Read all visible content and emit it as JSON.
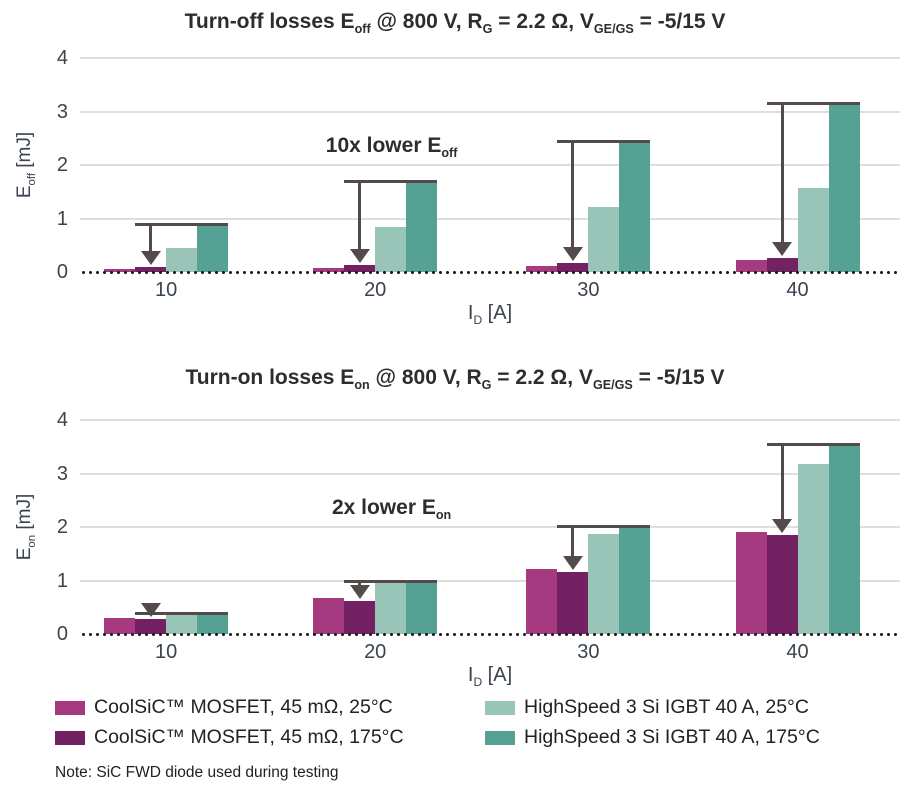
{
  "colors": {
    "series": [
      "#a53a81",
      "#732162",
      "#99c5b9",
      "#55a193"
    ],
    "arrow": "#534a4a",
    "gridline": "#e0dddd",
    "baseline_dots": "#1c1c1c",
    "tick_text": "#3a434e",
    "title_text": "#2d2d2d"
  },
  "legend": {
    "items": [
      {
        "label": "CoolSiC™ MOSFET, 45 mΩ, 25°C",
        "color": "#a53a81"
      },
      {
        "label": "CoolSiC™ MOSFET, 45 mΩ, 175°C",
        "color": "#732162"
      },
      {
        "label": "HighSpeed 3 Si IGBT 40 A, 25°C",
        "color": "#99c5b9"
      },
      {
        "label": "HighSpeed 3 Si IGBT 40 A, 175°C",
        "color": "#55a193"
      }
    ]
  },
  "note": "Note: SiC FWD diode used during testing",
  "chart_data": [
    {
      "type": "bar",
      "title": "Turn-off losses E_{off} @ 800 V, R_{G} = 2.2 Ω, V_{GE/GS} = -5/15 V",
      "xlabel": "I_{D} [A]",
      "ylabel": "E_{off} [mJ]",
      "annotation": "10x lower E_{off}",
      "categories": [
        "10",
        "20",
        "30",
        "40"
      ],
      "ylim": [
        0,
        4
      ],
      "yticks": [
        0,
        1,
        2,
        3,
        4
      ],
      "grid": true,
      "legend_position": "shared-bottom",
      "series": [
        {
          "name": "CoolSiC™ MOSFET, 45 mΩ, 25°C",
          "values": [
            0.06,
            0.08,
            0.12,
            0.22
          ]
        },
        {
          "name": "CoolSiC™ MOSFET, 45 mΩ, 175°C",
          "values": [
            0.1,
            0.13,
            0.16,
            0.26
          ]
        },
        {
          "name": "HighSpeed 3 Si IGBT 40 A, 25°C",
          "values": [
            0.45,
            0.85,
            1.22,
            1.57
          ]
        },
        {
          "name": "HighSpeed 3 Si IGBT 40 A, 175°C",
          "values": [
            0.89,
            1.7,
            2.45,
            3.15
          ]
        }
      ],
      "arrow": {
        "from_series": 3,
        "to_series": 1
      }
    },
    {
      "type": "bar",
      "title": "Turn-on losses E_{on} @ 800 V, R_{G} = 2.2 Ω, V_{GE/GS} = -5/15 V",
      "xlabel": "I_{D} [A]",
      "ylabel": "E_{on} [mJ]",
      "annotation": "2x lower E_{on}",
      "categories": [
        "10",
        "20",
        "30",
        "40"
      ],
      "ylim": [
        0,
        4
      ],
      "yticks": [
        0,
        1,
        2,
        3,
        4
      ],
      "grid": true,
      "legend_position": "shared-bottom",
      "series": [
        {
          "name": "CoolSiC™ MOSFET, 45 mΩ, 25°C",
          "values": [
            0.3,
            0.67,
            1.21,
            1.9
          ]
        },
        {
          "name": "CoolSiC™ MOSFET, 45 mΩ, 175°C",
          "values": [
            0.28,
            0.62,
            1.16,
            1.85
          ]
        },
        {
          "name": "HighSpeed 3 Si IGBT 40 A, 25°C",
          "values": [
            0.37,
            0.97,
            1.87,
            3.17
          ]
        },
        {
          "name": "HighSpeed 3 Si IGBT 40 A, 175°C",
          "values": [
            0.4,
            1.0,
            2.01,
            3.55
          ]
        }
      ],
      "arrow": {
        "from_series": 3,
        "to_series": 1
      }
    }
  ]
}
